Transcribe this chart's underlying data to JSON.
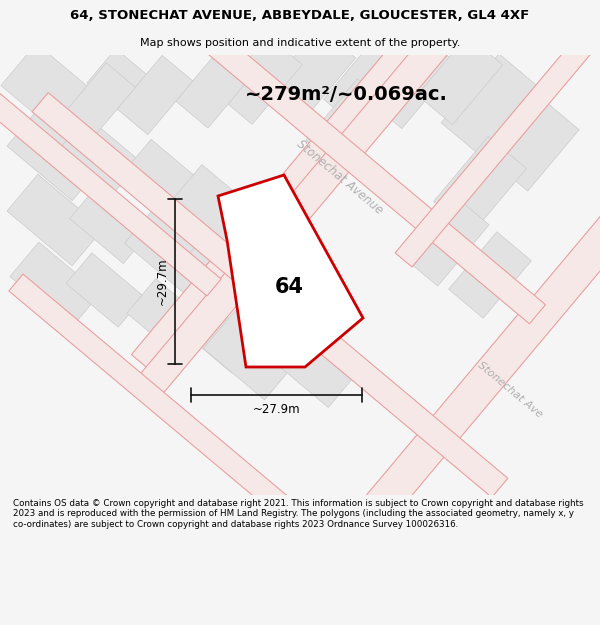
{
  "title_line1": "64, STONECHAT AVENUE, ABBEYDALE, GLOUCESTER, GL4 4XF",
  "title_line2": "Map shows position and indicative extent of the property.",
  "area_text": "~279m²/~0.069ac.",
  "label_number": "64",
  "dim_width": "~27.9m",
  "dim_height": "~29.7m",
  "footer_text": "Contains OS data © Crown copyright and database right 2021. This information is subject to Crown copyright and database rights 2023 and is reproduced with the permission of HM Land Registry. The polygons (including the associated geometry, namely x, y co-ordinates) are subject to Crown copyright and database rights 2023 Ordnance Survey 100026316.",
  "bg_color": "#f5f5f5",
  "map_bg": "#ffffff",
  "road_line_color": "#e8a0a0",
  "road_fill_color": "#f7e8e8",
  "block_color": "#e2e2e2",
  "block_edge_color": "#cccccc",
  "plot_outline_color": "#cc0000",
  "dim_line_color": "#111111",
  "street_label_color": "#b0b0b0",
  "area_label_upper": "Stonechat Avenue",
  "area_label_lower": "Stonechat Ave"
}
